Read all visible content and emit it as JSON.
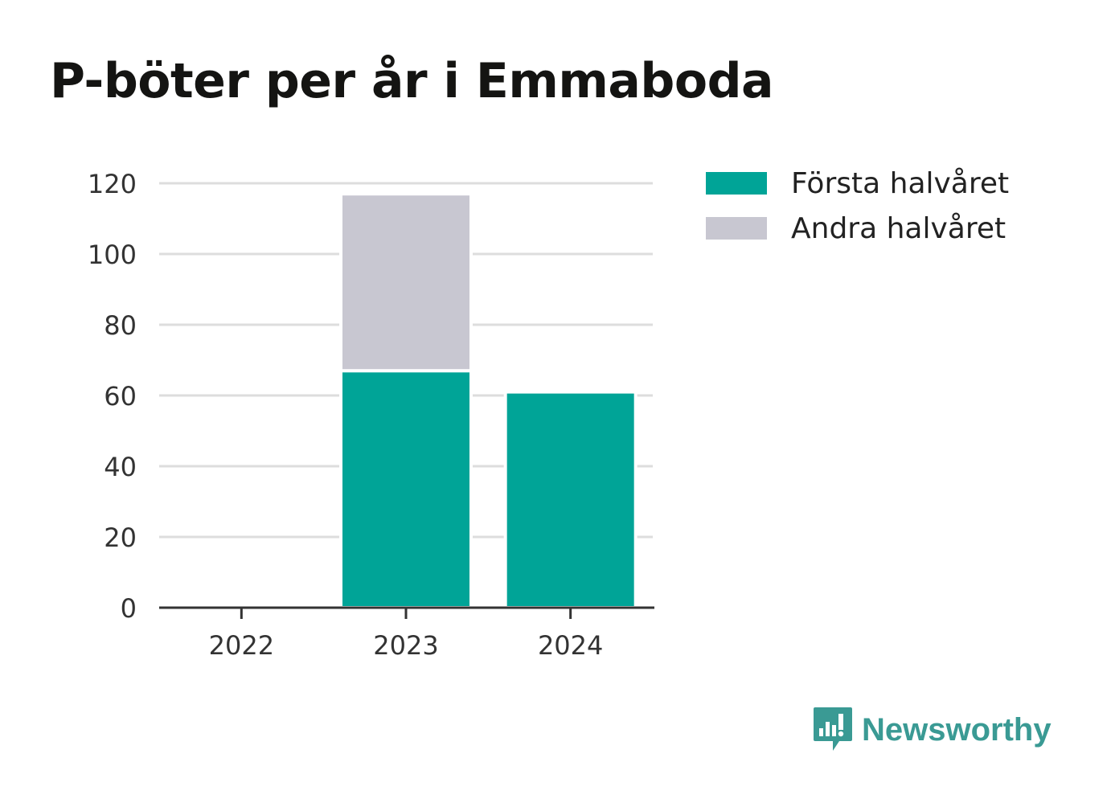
{
  "chart_data": {
    "type": "bar",
    "stacked": true,
    "title": "P-böter per år i Emmaboda",
    "categories": [
      "2022",
      "2023",
      "2024"
    ],
    "series": [
      {
        "name": "Första halvåret",
        "values": [
          0,
          67,
          61
        ],
        "color": "#00a497"
      },
      {
        "name": "Andra halvåret",
        "values": [
          0,
          50,
          0
        ],
        "color": "#c8c7d1"
      }
    ],
    "ylim": [
      0,
      120
    ],
    "yticks": [
      "0",
      "20",
      "40",
      "60",
      "80",
      "100",
      "120"
    ],
    "grid": true,
    "legend_position": "top-right",
    "xlabel": "",
    "ylabel": ""
  },
  "brand": {
    "name": "Newsworthy",
    "color": "#3a9a94",
    "icon": "newsworthy-logo-icon"
  }
}
